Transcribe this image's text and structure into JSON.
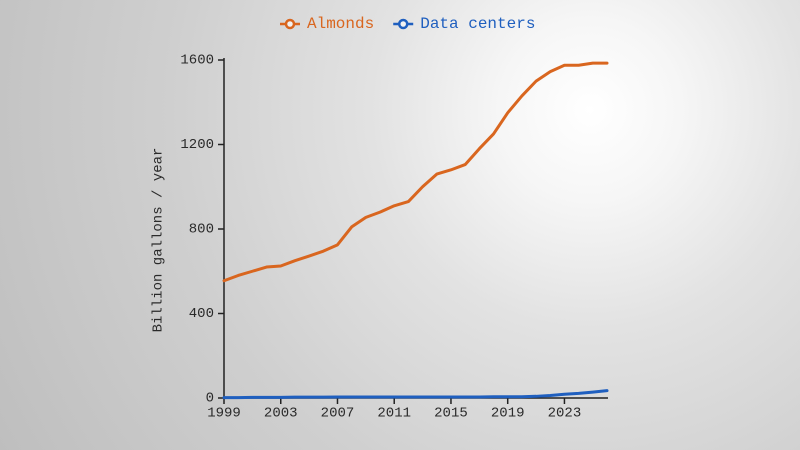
{
  "chart_data": {
    "type": "line",
    "y_label": "Billion gallons / year",
    "x": [
      1999,
      2000,
      2001,
      2002,
      2003,
      2004,
      2005,
      2006,
      2007,
      2008,
      2009,
      2010,
      2011,
      2012,
      2013,
      2014,
      2015,
      2016,
      2017,
      2018,
      2019,
      2020,
      2021,
      2022,
      2023,
      2024,
      2025,
      2026
    ],
    "series": [
      {
        "name": "Almonds",
        "color": "#d9661f",
        "values": [
          555,
          580,
          600,
          620,
          625,
          650,
          672,
          695,
          725,
          810,
          855,
          880,
          910,
          930,
          1000,
          1060,
          1080,
          1105,
          1180,
          1250,
          1350,
          1430,
          1500,
          1545,
          1575,
          1575,
          1585,
          1585
        ]
      },
      {
        "name": "Data centers",
        "color": "#1f5fbf",
        "values": [
          2,
          2,
          3,
          3,
          3,
          4,
          4,
          4,
          5,
          5,
          5,
          5,
          5,
          5,
          5,
          5,
          5,
          5,
          5,
          6,
          6,
          6,
          8,
          12,
          18,
          22,
          28,
          35
        ]
      }
    ],
    "xlim": [
      1999,
      2026
    ],
    "xticks": [
      1999,
      2003,
      2007,
      2011,
      2015,
      2019,
      2023
    ],
    "ylim": [
      0,
      1600
    ],
    "yticks": [
      0,
      400,
      800,
      1200,
      1600
    ],
    "legend": "top",
    "grid": false
  }
}
